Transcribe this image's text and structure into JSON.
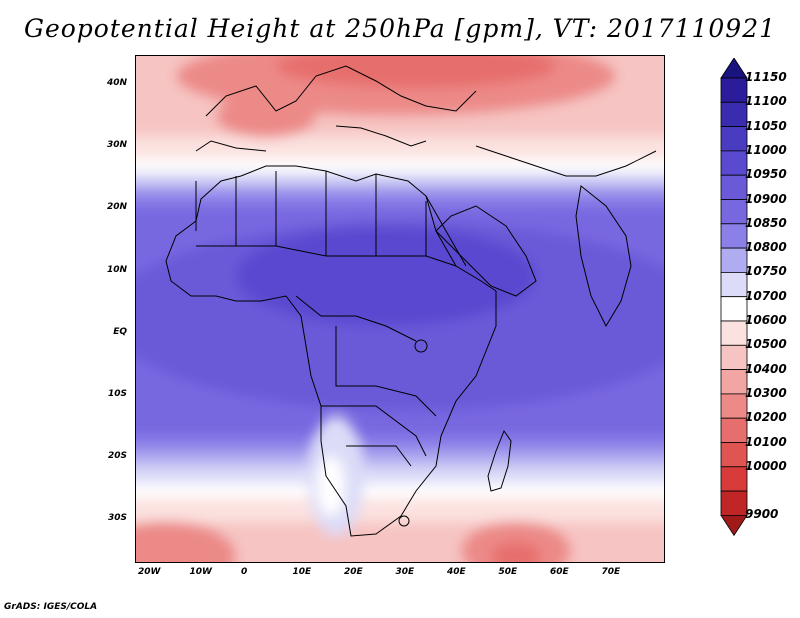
{
  "title": "Geopotential Height at 250hPa [gpm], VT: 2017110921",
  "credit": "GrADS: IGES/COLA",
  "lat_labels": [
    "40N",
    "30N",
    "20N",
    "10N",
    "EQ",
    "10S",
    "20S",
    "30S"
  ],
  "lon_labels": [
    "20W",
    "10W",
    "0",
    "10E",
    "20E",
    "30E",
    "40E",
    "50E",
    "60E",
    "70E"
  ],
  "colorbar": {
    "levels": [
      "11150",
      "11100",
      "11050",
      "11000",
      "10950",
      "10900",
      "10850",
      "10800",
      "10750",
      "10700",
      "10600",
      "10500",
      "10400",
      "10300",
      "10200",
      "10100",
      "10000",
      "9900"
    ],
    "colors": [
      "#2a1c9a",
      "#3a2cae",
      "#4a3cc0",
      "#5a4ad0",
      "#6a5ad8",
      "#7868e0",
      "#8b80e8",
      "#b0acf0",
      "#dcdcf8",
      "#ffffff",
      "#fbe2e0",
      "#f6c4c2",
      "#f2a6a4",
      "#ec8a88",
      "#e66e6c",
      "#e05452",
      "#d83c3a",
      "#c02626"
    ]
  },
  "legend": {
    "top_cap_color": "#1a1480",
    "bottom_cap_color": "#a01a1a"
  },
  "chart_data": {
    "type": "heatmap",
    "variable": "Geopotential Height at 250hPa",
    "units": "gpm",
    "valid_time": "2017110921",
    "lon_range": [
      -22,
      80
    ],
    "lat_range": [
      -37,
      45
    ]
  }
}
